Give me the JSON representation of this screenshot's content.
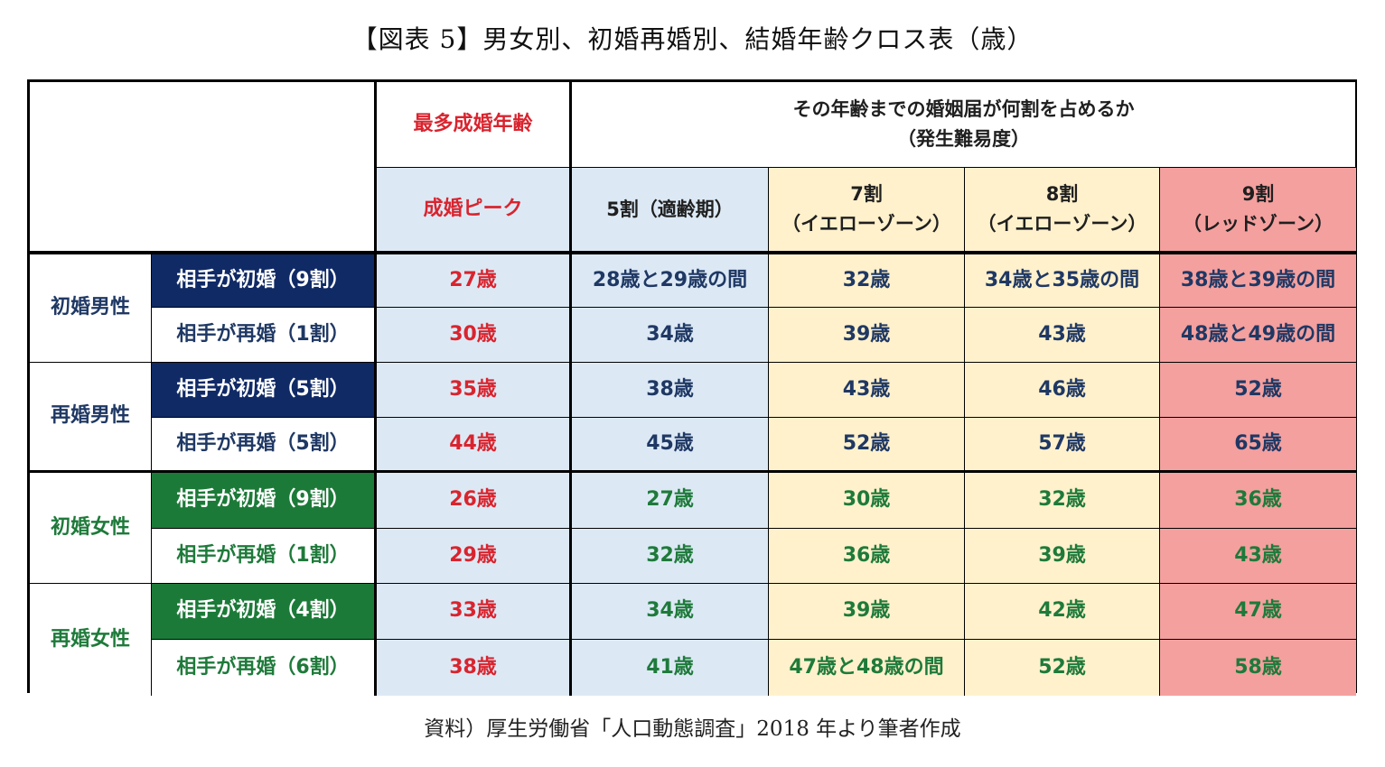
{
  "title": "【図表 5】男女別、初婚再婚別、結婚年齢クロス表（歳）",
  "source": "資料）厚生労働省「人口動態調査」2018 年より筆者作成",
  "chart_data": {
    "type": "table",
    "header": {
      "peak_top": "最多成婚年齢",
      "span_line1": "その年齢までの婚姻届が何割を占めるか",
      "span_line2": "（発生難易度）",
      "peak_sub": "成婚ピーク",
      "col5": "5割（適齢期）",
      "col7_l1": "7割",
      "col7_l2": "（イエローゾーン）",
      "col8_l1": "8割",
      "col8_l2": "（イエローゾーン）",
      "col9_l1": "9割",
      "col9_l2": "（レッドゾーン）"
    },
    "groups": [
      {
        "label": "初婚男性",
        "rows": [
          {
            "label": "相手が初婚（9割）",
            "values": [
              "27歳",
              "28歳と29歳の間",
              "32歳",
              "34歳と35歳の間",
              "38歳と39歳の間"
            ]
          },
          {
            "label": "相手が再婚（1割）",
            "values": [
              "30歳",
              "34歳",
              "39歳",
              "43歳",
              "48歳と49歳の間"
            ]
          }
        ]
      },
      {
        "label": "再婚男性",
        "rows": [
          {
            "label": "相手が初婚（5割）",
            "values": [
              "35歳",
              "38歳",
              "43歳",
              "46歳",
              "52歳"
            ]
          },
          {
            "label": "相手が再婚（5割）",
            "values": [
              "44歳",
              "45歳",
              "52歳",
              "57歳",
              "65歳"
            ]
          }
        ]
      },
      {
        "label": "初婚女性",
        "rows": [
          {
            "label": "相手が初婚（9割）",
            "values": [
              "26歳",
              "27歳",
              "30歳",
              "32歳",
              "36歳"
            ]
          },
          {
            "label": "相手が再婚（1割）",
            "values": [
              "29歳",
              "32歳",
              "36歳",
              "39歳",
              "43歳"
            ]
          }
        ]
      },
      {
        "label": "再婚女性",
        "rows": [
          {
            "label": "相手が初婚（4割）",
            "values": [
              "33歳",
              "34歳",
              "39歳",
              "42歳",
              "47歳"
            ]
          },
          {
            "label": "相手が再婚（6割）",
            "values": [
              "38歳",
              "41歳",
              "47歳と48歳の間",
              "52歳",
              "58歳"
            ]
          }
        ]
      }
    ],
    "colors": {
      "male_text": "#1f3864",
      "female_text": "#1e7a3a",
      "peak_text": "#d9242e",
      "navy_label_bg": "#102a66",
      "green_label_bg": "#1c7a38",
      "blue_col_bg": "#dce9f5",
      "yellow_col_bg": "#fff1cc",
      "red_col_bg": "#f4a09f"
    }
  }
}
